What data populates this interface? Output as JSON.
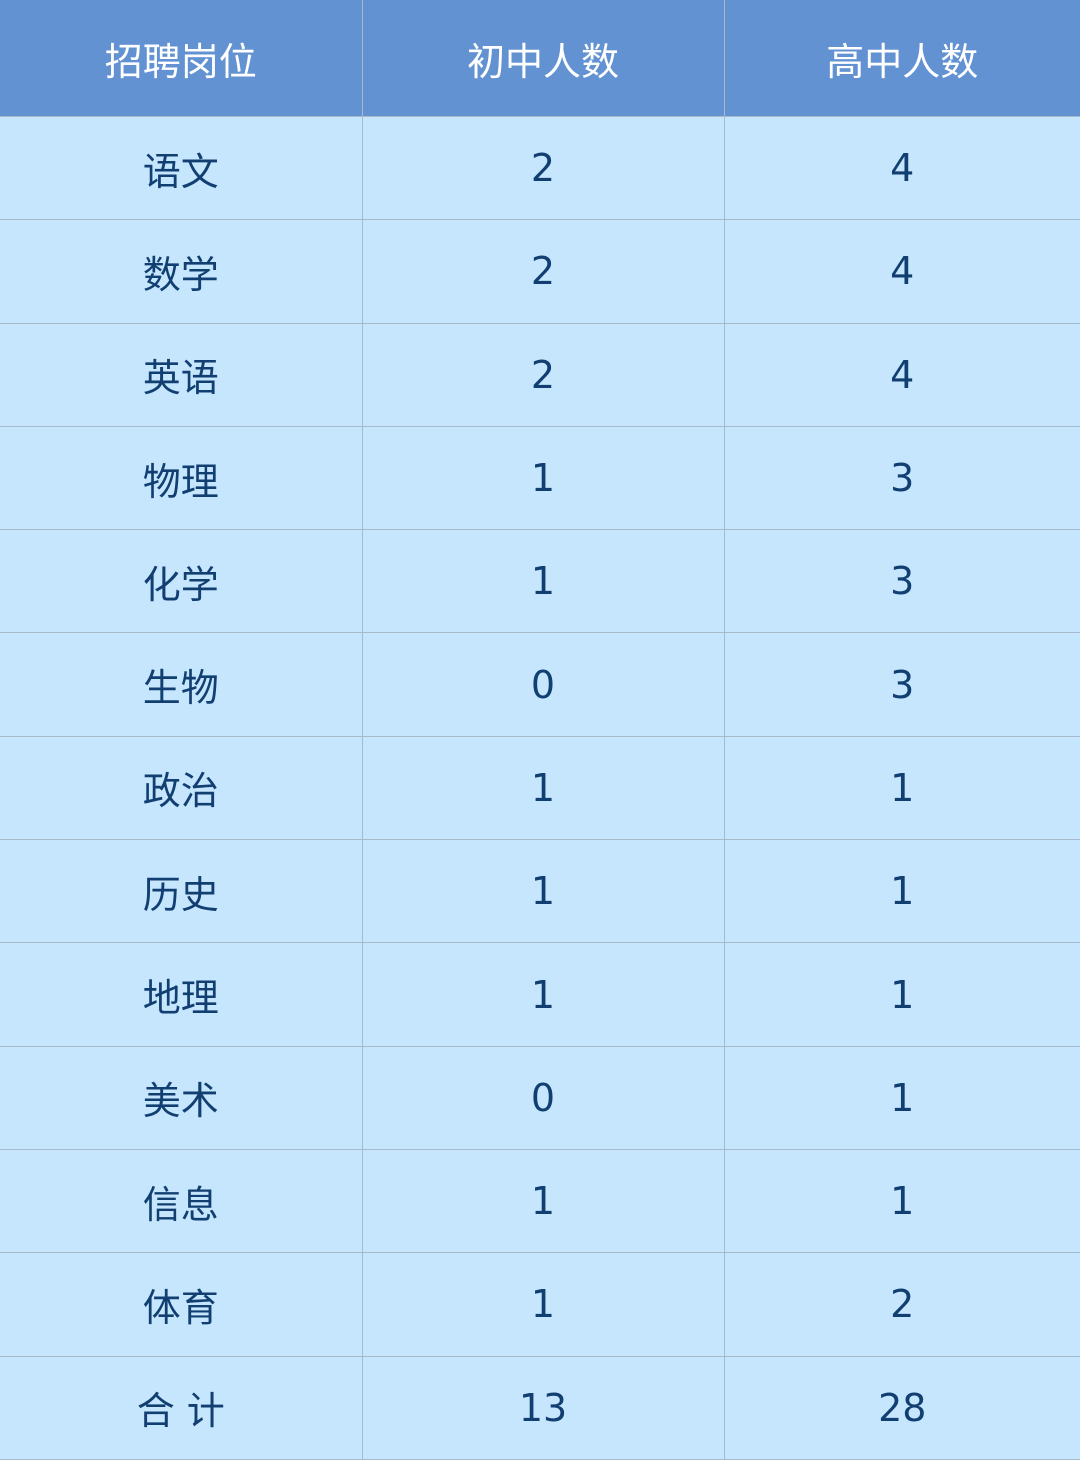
{
  "table": {
    "headers": [
      "招聘岗位",
      "初中人数",
      "高中人数"
    ],
    "rows": [
      [
        "语文",
        "2",
        "4"
      ],
      [
        "数学",
        "2",
        "4"
      ],
      [
        "英语",
        "2",
        "4"
      ],
      [
        "物理",
        "1",
        "3"
      ],
      [
        "化学",
        "1",
        "3"
      ],
      [
        "生物",
        "0",
        "3"
      ],
      [
        "政治",
        "1",
        "1"
      ],
      [
        "历史",
        "1",
        "1"
      ],
      [
        "地理",
        "1",
        "1"
      ],
      [
        "美术",
        "0",
        "1"
      ],
      [
        "信息",
        "1",
        "1"
      ],
      [
        "体育",
        "1",
        "2"
      ]
    ],
    "total": [
      "合 计",
      "13",
      "28"
    ]
  },
  "colors": {
    "header_bg": "#6392d3",
    "body_bg": "#c5e6fd",
    "text": "#123f72",
    "border": "#a9b9cc"
  }
}
